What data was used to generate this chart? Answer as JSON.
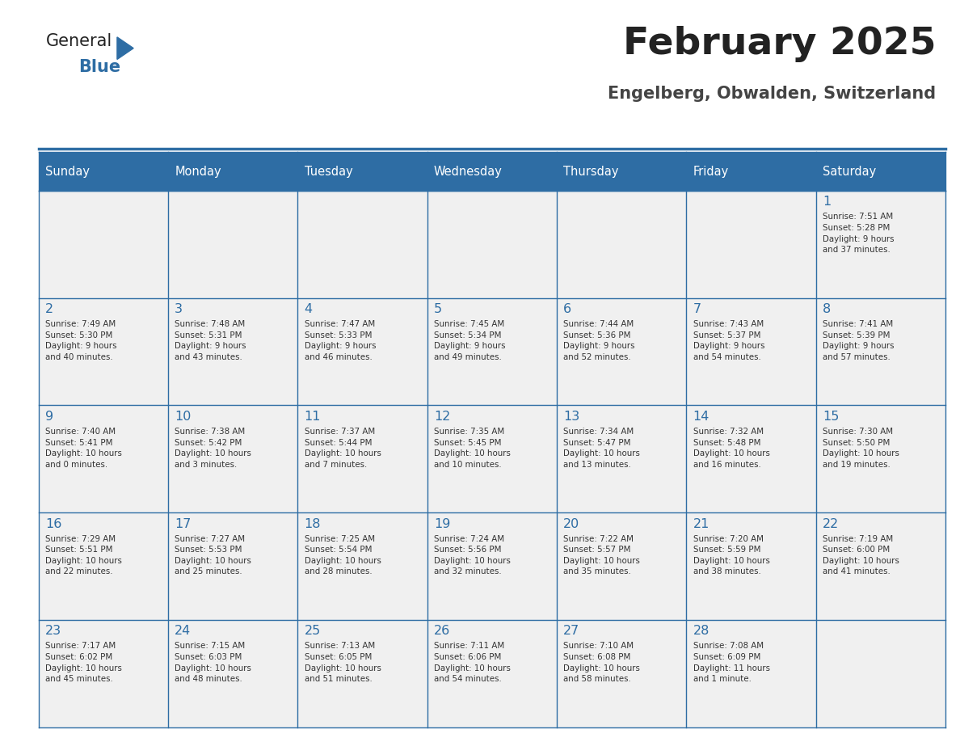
{
  "title": "February 2025",
  "subtitle": "Engelberg, Obwalden, Switzerland",
  "header_color": "#2E6DA4",
  "header_text_color": "#FFFFFF",
  "cell_bg_color": "#F0F0F0",
  "day_number_color": "#2E6DA4",
  "text_color": "#333333",
  "line_color": "#2E6DA4",
  "days_of_week": [
    "Sunday",
    "Monday",
    "Tuesday",
    "Wednesday",
    "Thursday",
    "Friday",
    "Saturday"
  ],
  "logo_general_color": "#222222",
  "logo_blue_color": "#2E6DA4",
  "title_color": "#222222",
  "subtitle_color": "#444444",
  "weeks": [
    [
      {
        "day": "",
        "info": ""
      },
      {
        "day": "",
        "info": ""
      },
      {
        "day": "",
        "info": ""
      },
      {
        "day": "",
        "info": ""
      },
      {
        "day": "",
        "info": ""
      },
      {
        "day": "",
        "info": ""
      },
      {
        "day": "1",
        "info": "Sunrise: 7:51 AM\nSunset: 5:28 PM\nDaylight: 9 hours\nand 37 minutes."
      }
    ],
    [
      {
        "day": "2",
        "info": "Sunrise: 7:49 AM\nSunset: 5:30 PM\nDaylight: 9 hours\nand 40 minutes."
      },
      {
        "day": "3",
        "info": "Sunrise: 7:48 AM\nSunset: 5:31 PM\nDaylight: 9 hours\nand 43 minutes."
      },
      {
        "day": "4",
        "info": "Sunrise: 7:47 AM\nSunset: 5:33 PM\nDaylight: 9 hours\nand 46 minutes."
      },
      {
        "day": "5",
        "info": "Sunrise: 7:45 AM\nSunset: 5:34 PM\nDaylight: 9 hours\nand 49 minutes."
      },
      {
        "day": "6",
        "info": "Sunrise: 7:44 AM\nSunset: 5:36 PM\nDaylight: 9 hours\nand 52 minutes."
      },
      {
        "day": "7",
        "info": "Sunrise: 7:43 AM\nSunset: 5:37 PM\nDaylight: 9 hours\nand 54 minutes."
      },
      {
        "day": "8",
        "info": "Sunrise: 7:41 AM\nSunset: 5:39 PM\nDaylight: 9 hours\nand 57 minutes."
      }
    ],
    [
      {
        "day": "9",
        "info": "Sunrise: 7:40 AM\nSunset: 5:41 PM\nDaylight: 10 hours\nand 0 minutes."
      },
      {
        "day": "10",
        "info": "Sunrise: 7:38 AM\nSunset: 5:42 PM\nDaylight: 10 hours\nand 3 minutes."
      },
      {
        "day": "11",
        "info": "Sunrise: 7:37 AM\nSunset: 5:44 PM\nDaylight: 10 hours\nand 7 minutes."
      },
      {
        "day": "12",
        "info": "Sunrise: 7:35 AM\nSunset: 5:45 PM\nDaylight: 10 hours\nand 10 minutes."
      },
      {
        "day": "13",
        "info": "Sunrise: 7:34 AM\nSunset: 5:47 PM\nDaylight: 10 hours\nand 13 minutes."
      },
      {
        "day": "14",
        "info": "Sunrise: 7:32 AM\nSunset: 5:48 PM\nDaylight: 10 hours\nand 16 minutes."
      },
      {
        "day": "15",
        "info": "Sunrise: 7:30 AM\nSunset: 5:50 PM\nDaylight: 10 hours\nand 19 minutes."
      }
    ],
    [
      {
        "day": "16",
        "info": "Sunrise: 7:29 AM\nSunset: 5:51 PM\nDaylight: 10 hours\nand 22 minutes."
      },
      {
        "day": "17",
        "info": "Sunrise: 7:27 AM\nSunset: 5:53 PM\nDaylight: 10 hours\nand 25 minutes."
      },
      {
        "day": "18",
        "info": "Sunrise: 7:25 AM\nSunset: 5:54 PM\nDaylight: 10 hours\nand 28 minutes."
      },
      {
        "day": "19",
        "info": "Sunrise: 7:24 AM\nSunset: 5:56 PM\nDaylight: 10 hours\nand 32 minutes."
      },
      {
        "day": "20",
        "info": "Sunrise: 7:22 AM\nSunset: 5:57 PM\nDaylight: 10 hours\nand 35 minutes."
      },
      {
        "day": "21",
        "info": "Sunrise: 7:20 AM\nSunset: 5:59 PM\nDaylight: 10 hours\nand 38 minutes."
      },
      {
        "day": "22",
        "info": "Sunrise: 7:19 AM\nSunset: 6:00 PM\nDaylight: 10 hours\nand 41 minutes."
      }
    ],
    [
      {
        "day": "23",
        "info": "Sunrise: 7:17 AM\nSunset: 6:02 PM\nDaylight: 10 hours\nand 45 minutes."
      },
      {
        "day": "24",
        "info": "Sunrise: 7:15 AM\nSunset: 6:03 PM\nDaylight: 10 hours\nand 48 minutes."
      },
      {
        "day": "25",
        "info": "Sunrise: 7:13 AM\nSunset: 6:05 PM\nDaylight: 10 hours\nand 51 minutes."
      },
      {
        "day": "26",
        "info": "Sunrise: 7:11 AM\nSunset: 6:06 PM\nDaylight: 10 hours\nand 54 minutes."
      },
      {
        "day": "27",
        "info": "Sunrise: 7:10 AM\nSunset: 6:08 PM\nDaylight: 10 hours\nand 58 minutes."
      },
      {
        "day": "28",
        "info": "Sunrise: 7:08 AM\nSunset: 6:09 PM\nDaylight: 11 hours\nand 1 minute."
      },
      {
        "day": "",
        "info": ""
      }
    ]
  ]
}
